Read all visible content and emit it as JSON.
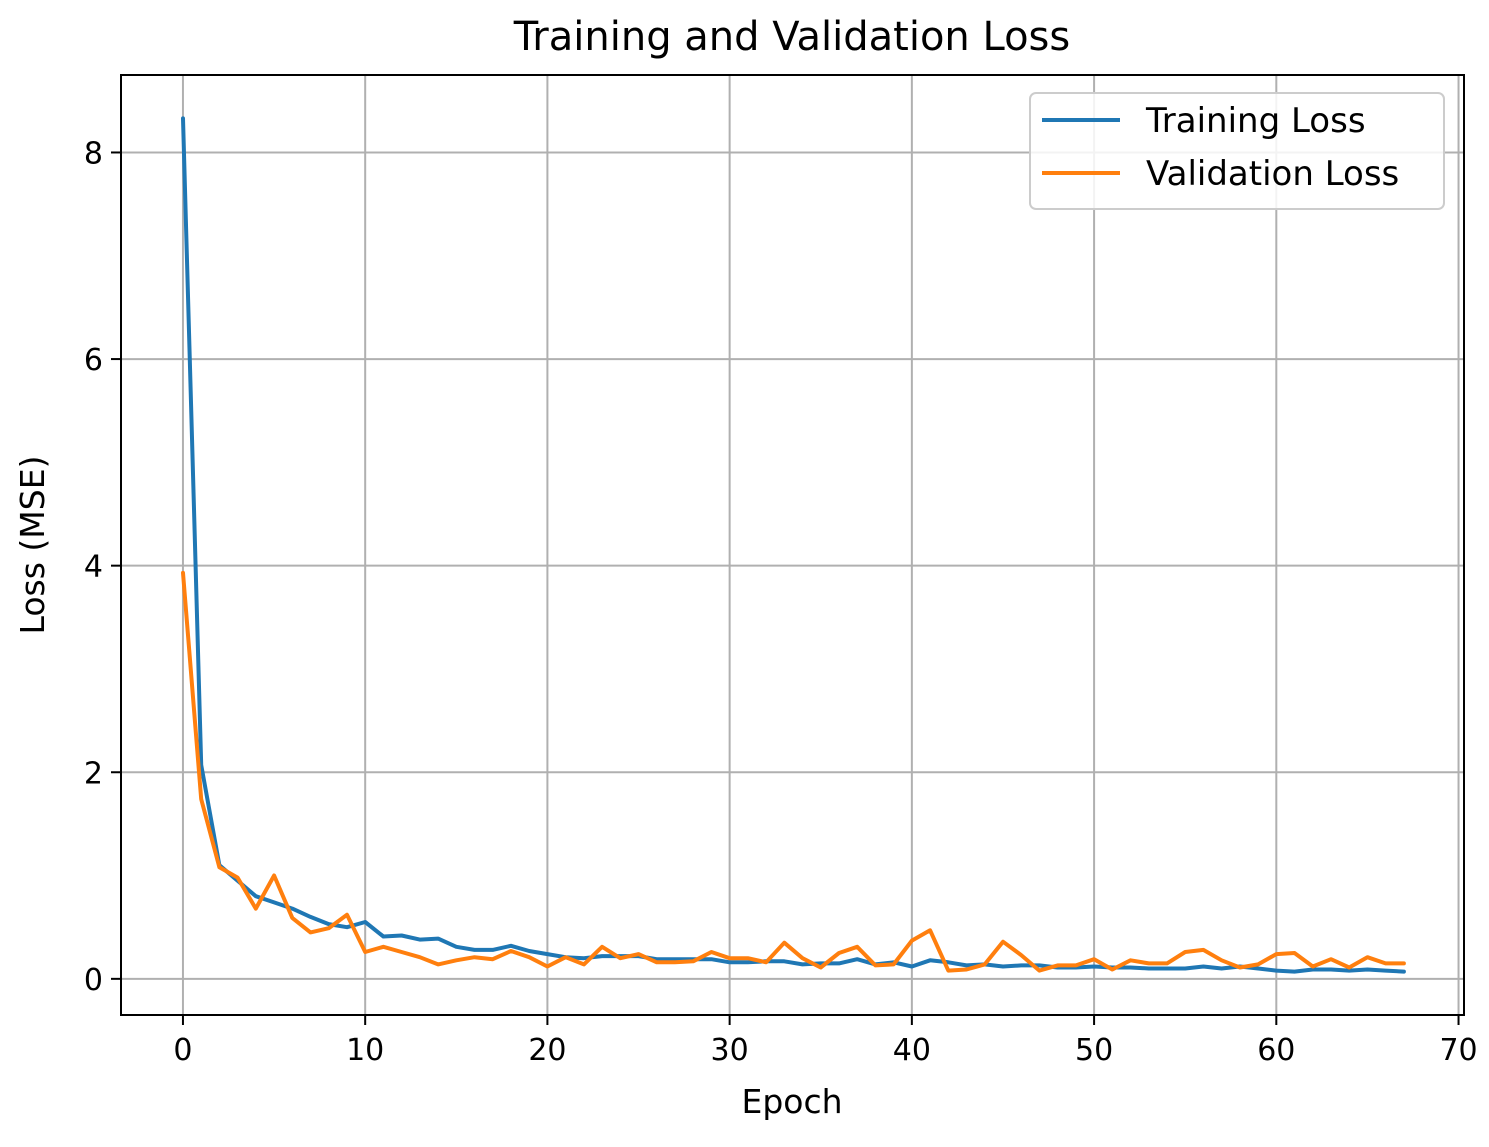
{
  "chart_data": {
    "type": "line",
    "title": "Training and Validation Loss",
    "xlabel": "Epoch",
    "ylabel": "Loss (MSE)",
    "xlim": [
      -3.4,
      70.3
    ],
    "ylim": [
      -0.35,
      8.75
    ],
    "xticks": [
      0,
      10,
      20,
      30,
      40,
      50,
      60,
      70
    ],
    "yticks": [
      0,
      2,
      4,
      6,
      8
    ],
    "grid": true,
    "legend_position": "upper right",
    "x": [
      0,
      1,
      2,
      3,
      4,
      5,
      6,
      7,
      8,
      9,
      10,
      11,
      12,
      13,
      14,
      15,
      16,
      17,
      18,
      19,
      20,
      21,
      22,
      23,
      24,
      25,
      26,
      27,
      28,
      29,
      30,
      31,
      32,
      33,
      34,
      35,
      36,
      37,
      38,
      39,
      40,
      41,
      42,
      43,
      44,
      45,
      46,
      47,
      48,
      49,
      50,
      51,
      52,
      53,
      54,
      55,
      56,
      57,
      58,
      59,
      60,
      61,
      62,
      63,
      64,
      65,
      66,
      67
    ],
    "series": [
      {
        "name": "Training Loss",
        "color": "#1f77b4",
        "values": [
          8.33,
          2.07,
          1.1,
          0.95,
          0.8,
          0.74,
          0.68,
          0.6,
          0.53,
          0.5,
          0.55,
          0.41,
          0.42,
          0.38,
          0.39,
          0.31,
          0.28,
          0.28,
          0.32,
          0.27,
          0.24,
          0.21,
          0.2,
          0.22,
          0.22,
          0.22,
          0.19,
          0.19,
          0.19,
          0.19,
          0.16,
          0.16,
          0.17,
          0.17,
          0.14,
          0.15,
          0.15,
          0.19,
          0.14,
          0.16,
          0.12,
          0.18,
          0.16,
          0.13,
          0.14,
          0.12,
          0.13,
          0.13,
          0.11,
          0.11,
          0.12,
          0.11,
          0.11,
          0.1,
          0.1,
          0.1,
          0.12,
          0.1,
          0.12,
          0.1,
          0.08,
          0.07,
          0.09,
          0.09,
          0.08,
          0.09,
          0.08,
          0.07
        ]
      },
      {
        "name": "Validation Loss",
        "color": "#ff7f0e",
        "values": [
          3.93,
          1.74,
          1.08,
          0.98,
          0.68,
          1.0,
          0.59,
          0.45,
          0.49,
          0.62,
          0.26,
          0.31,
          0.26,
          0.21,
          0.14,
          0.18,
          0.21,
          0.19,
          0.27,
          0.21,
          0.12,
          0.21,
          0.14,
          0.31,
          0.2,
          0.24,
          0.16,
          0.16,
          0.17,
          0.26,
          0.2,
          0.2,
          0.16,
          0.35,
          0.2,
          0.11,
          0.25,
          0.31,
          0.13,
          0.14,
          0.37,
          0.47,
          0.08,
          0.09,
          0.14,
          0.36,
          0.23,
          0.08,
          0.13,
          0.13,
          0.19,
          0.09,
          0.18,
          0.15,
          0.15,
          0.26,
          0.28,
          0.18,
          0.11,
          0.14,
          0.24,
          0.25,
          0.12,
          0.19,
          0.11,
          0.21,
          0.15,
          0.15
        ]
      }
    ]
  }
}
